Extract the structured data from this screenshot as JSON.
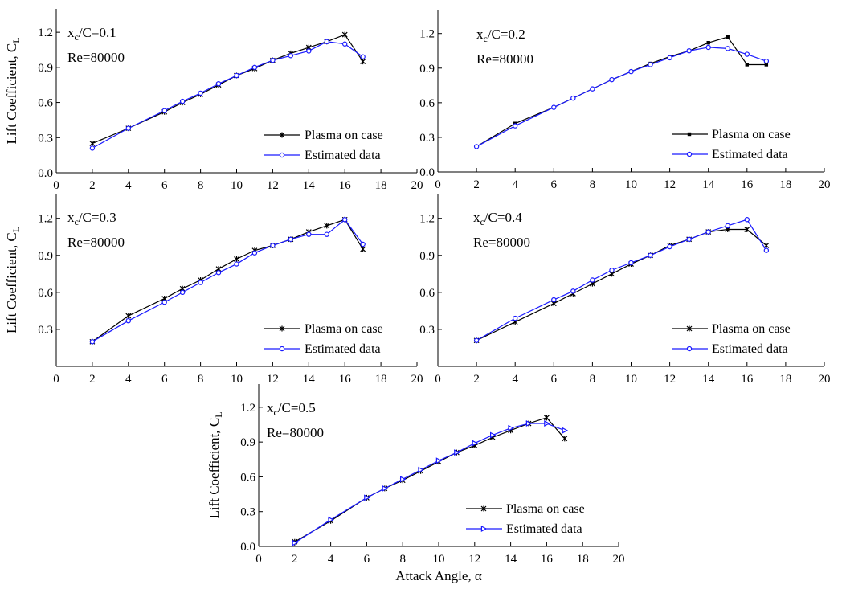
{
  "chart_data": [
    {
      "type": "line",
      "case_label": [
        "x",
        "c",
        "/C=0.1"
      ],
      "re_label": "Re=80000",
      "ylabel": [
        "Lift Coefficient, C",
        "L"
      ],
      "x": [
        2,
        4,
        6,
        7,
        8,
        9,
        10,
        11,
        12,
        13,
        14,
        15,
        16,
        17
      ],
      "series": [
        {
          "name": "Plasma on case",
          "color": "#000000",
          "marker": "star",
          "values": [
            0.25,
            0.38,
            0.52,
            0.6,
            0.67,
            0.75,
            0.83,
            0.89,
            0.96,
            1.02,
            1.07,
            1.12,
            1.18,
            0.95
          ]
        },
        {
          "name": "Estimated data",
          "color": "#1a1aff",
          "marker": "circle",
          "values": [
            0.21,
            0.38,
            0.53,
            0.61,
            0.68,
            0.76,
            0.83,
            0.9,
            0.96,
            1.0,
            1.04,
            1.12,
            1.1,
            0.99
          ]
        }
      ],
      "xlim": [
        0,
        20
      ],
      "xticks": [
        0,
        2,
        4,
        6,
        8,
        10,
        12,
        14,
        16,
        18,
        20
      ],
      "ylim": [
        0,
        1.4
      ],
      "yticks": [
        {
          "value": 0,
          "label": "0.0"
        },
        0.3,
        0.6,
        0.9,
        1.2
      ],
      "legend": "lower right"
    },
    {
      "type": "line",
      "case_label": [
        "x",
        "c",
        "/C=0.2"
      ],
      "re_label": "Re=80000",
      "x": [
        2,
        4,
        6,
        7,
        8,
        9,
        10,
        11,
        12,
        13,
        14,
        15,
        16,
        17
      ],
      "series": [
        {
          "name": "Plasma on case",
          "color": "#000000",
          "marker": "square",
          "values": [
            0.22,
            0.42,
            0.56,
            0.64,
            0.72,
            0.8,
            0.87,
            0.94,
            1.0,
            1.05,
            1.12,
            1.17,
            0.93,
            0.93
          ]
        },
        {
          "name": "Estimated data",
          "color": "#1a1aff",
          "marker": "circle",
          "values": [
            0.22,
            0.4,
            0.56,
            0.64,
            0.72,
            0.8,
            0.87,
            0.93,
            0.99,
            1.05,
            1.08,
            1.07,
            1.02,
            0.96
          ]
        }
      ],
      "xlim": [
        0,
        20
      ],
      "xticks": [
        0,
        2,
        4,
        6,
        8,
        10,
        12,
        14,
        16,
        18,
        20
      ],
      "ylim": [
        0,
        1.4
      ],
      "yticks": [
        {
          "value": 0,
          "label": "0.0"
        },
        0.3,
        0.6,
        0.9,
        1.2
      ],
      "legend": "lower right"
    },
    {
      "type": "line",
      "case_label": [
        "x",
        "c",
        "/C=0.3"
      ],
      "re_label": "Re=80000",
      "ylabel": [
        "Lift Coefficient, C",
        "L"
      ],
      "x": [
        2,
        4,
        6,
        7,
        8,
        9,
        10,
        11,
        12,
        13,
        14,
        15,
        16,
        17
      ],
      "series": [
        {
          "name": "Plasma on case",
          "color": "#000000",
          "marker": "star",
          "values": [
            0.2,
            0.41,
            0.55,
            0.63,
            0.7,
            0.79,
            0.87,
            0.94,
            0.98,
            1.03,
            1.09,
            1.14,
            1.19,
            0.95
          ]
        },
        {
          "name": "Estimated data",
          "color": "#1a1aff",
          "marker": "circle",
          "values": [
            0.2,
            0.37,
            0.52,
            0.6,
            0.68,
            0.76,
            0.83,
            0.92,
            0.98,
            1.03,
            1.07,
            1.07,
            1.19,
            0.99
          ]
        }
      ],
      "xlim": [
        0,
        20
      ],
      "xticks": [
        0,
        2,
        4,
        6,
        8,
        10,
        12,
        14,
        16,
        18,
        20
      ],
      "ylim": [
        0,
        1.4
      ],
      "yticks": [
        0.3,
        0.6,
        0.9,
        1.2
      ],
      "legend": "lower right"
    },
    {
      "type": "line",
      "case_label": [
        "x",
        "c",
        "/C=0.4"
      ],
      "re_label": "Re=80000",
      "x": [
        2,
        4,
        6,
        7,
        8,
        9,
        10,
        11,
        12,
        13,
        14,
        15,
        16,
        17
      ],
      "series": [
        {
          "name": "Plasma on case",
          "color": "#000000",
          "marker": "star",
          "values": [
            0.21,
            0.36,
            0.51,
            0.59,
            0.67,
            0.75,
            0.83,
            0.9,
            0.98,
            1.03,
            1.09,
            1.11,
            1.11,
            0.98
          ]
        },
        {
          "name": "Estimated data",
          "color": "#1a1aff",
          "marker": "circle",
          "values": [
            0.21,
            0.39,
            0.54,
            0.61,
            0.7,
            0.78,
            0.84,
            0.9,
            0.97,
            1.03,
            1.09,
            1.14,
            1.19,
            0.94
          ]
        }
      ],
      "xlim": [
        0,
        20
      ],
      "xticks": [
        0,
        2,
        4,
        6,
        8,
        10,
        12,
        14,
        16,
        18,
        20
      ],
      "ylim": [
        0,
        1.4
      ],
      "yticks": [
        0.3,
        0.6,
        0.9,
        1.2
      ],
      "legend": "lower right"
    },
    {
      "type": "line",
      "case_label": [
        "x",
        "c",
        "/C=0.5"
      ],
      "re_label": "Re=80000",
      "ylabel": [
        "Lift Coefficient, C",
        "L"
      ],
      "xlabel": "Attack Angle, α",
      "x": [
        2,
        4,
        6,
        7,
        8,
        9,
        10,
        11,
        12,
        13,
        14,
        15,
        16,
        17
      ],
      "series": [
        {
          "name": "Plasma on case",
          "color": "#000000",
          "marker": "star",
          "values": [
            0.04,
            0.22,
            0.42,
            0.5,
            0.57,
            0.65,
            0.73,
            0.81,
            0.87,
            0.94,
            1.0,
            1.06,
            1.11,
            0.93
          ]
        },
        {
          "name": "Estimated data",
          "color": "#1a1aff",
          "marker": "triangle",
          "values": [
            0.03,
            0.23,
            0.42,
            0.5,
            0.58,
            0.66,
            0.74,
            0.81,
            0.89,
            0.96,
            1.02,
            1.06,
            1.06,
            1.0
          ]
        }
      ],
      "xlim": [
        0,
        20
      ],
      "xticks": [
        0,
        2,
        4,
        6,
        8,
        10,
        12,
        14,
        16,
        18,
        20
      ],
      "ylim": [
        0,
        1.4
      ],
      "yticks": [
        {
          "value": 0,
          "label": "0.0"
        },
        0.3,
        0.6,
        0.9,
        1.2
      ],
      "legend": "lower right"
    }
  ]
}
